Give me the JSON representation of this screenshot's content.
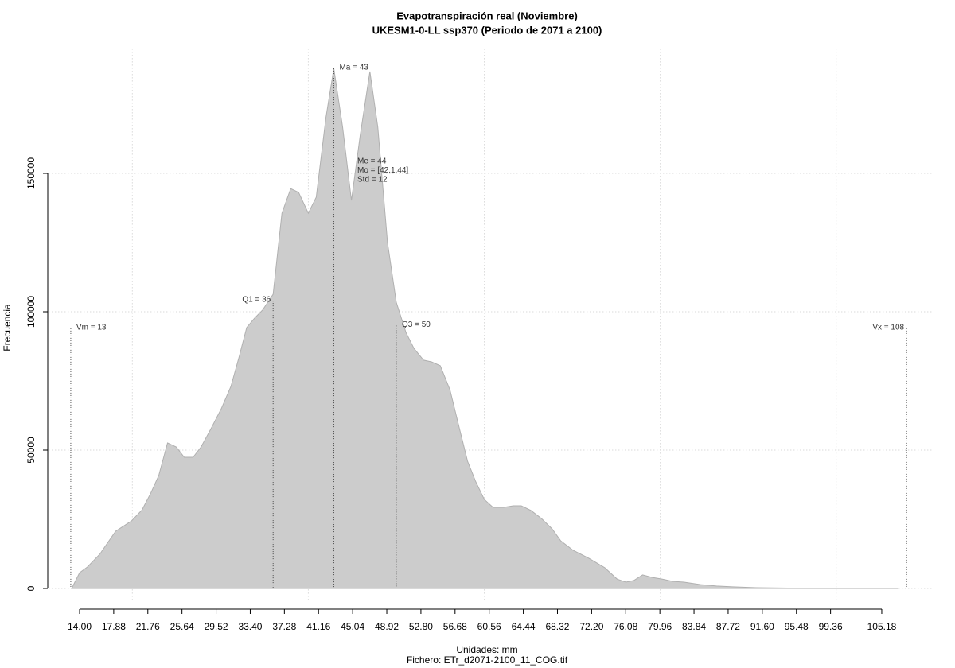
{
  "chart_data": {
    "type": "area",
    "title": "Evapotranspiración real (Noviembre)",
    "subtitle": "UKESM1-0-LL ssp370 (Periodo de 2071 a 2100)",
    "xlabel": "Unidades: mm",
    "caption": "Fichero: ETr_d2071-2100_11_COG.tif",
    "ylabel": "Frecuencia",
    "color": "#cccccc",
    "x": [
      13.1,
      14,
      14.9,
      16.3,
      18.1,
      19.9,
      21.1,
      22.1,
      23,
      24,
      25,
      25.9,
      26.9,
      27.8,
      28.9,
      30.1,
      31.2,
      32.1,
      33,
      33.9,
      34.8,
      36,
      37,
      38,
      38.9,
      40,
      40.9,
      42,
      42.9,
      43.9,
      44.9,
      45.9,
      47,
      47.9,
      49,
      50,
      51.1,
      52,
      53.1,
      54,
      55,
      56.1,
      57.2,
      58.1,
      59,
      60,
      61,
      62.2,
      63.3,
      64.2,
      65.3,
      66.5,
      67.7,
      68.7,
      70.1,
      71.9,
      73.7,
      75.1,
      76.1,
      77,
      78,
      79.1,
      80.2,
      81.4,
      82.7,
      84.6,
      86.4,
      88.2,
      90.9,
      94.5,
      99.9,
      107
    ],
    "values": [
      0,
      5700,
      7800,
      12400,
      20700,
      24400,
      28400,
      34500,
      40800,
      52600,
      51100,
      47400,
      47400,
      51100,
      57500,
      64900,
      73000,
      83300,
      94300,
      97700,
      100600,
      106300,
      135600,
      144500,
      143100,
      135600,
      141400,
      170100,
      187900,
      166700,
      140200,
      163800,
      186800,
      166700,
      125000,
      103400,
      92500,
      86800,
      82500,
      81900,
      80500,
      71800,
      57500,
      46000,
      38800,
      32200,
      29300,
      29300,
      29900,
      29900,
      28200,
      25300,
      21600,
      17200,
      13800,
      10900,
      7500,
      3400,
      2300,
      2900,
      4900,
      4000,
      3400,
      2600,
      2300,
      1400,
      900,
      600,
      300,
      150,
      50,
      0
    ],
    "xlim": [
      10.5,
      111
    ],
    "ylim": [
      -5000,
      195000
    ],
    "yticks": [
      0,
      50000,
      100000,
      150000
    ],
    "xticks": [
      {
        "value": 14,
        "label": "14.00"
      },
      {
        "value": 17.88,
        "label": "17.88"
      },
      {
        "value": 21.76,
        "label": "21.76"
      },
      {
        "value": 25.64,
        "label": "25.64"
      },
      {
        "value": 29.52,
        "label": "29.52"
      },
      {
        "value": 33.4,
        "label": "33.40"
      },
      {
        "value": 37.28,
        "label": "37.28"
      },
      {
        "value": 41.16,
        "label": "41.16"
      },
      {
        "value": 45.04,
        "label": "45.04"
      },
      {
        "value": 48.92,
        "label": "48.92"
      },
      {
        "value": 52.8,
        "label": "52.80"
      },
      {
        "value": 56.68,
        "label": "56.68"
      },
      {
        "value": 60.56,
        "label": "60.56"
      },
      {
        "value": 64.44,
        "label": "64.44"
      },
      {
        "value": 68.32,
        "label": "68.32"
      },
      {
        "value": 72.2,
        "label": "72.20"
      },
      {
        "value": 76.08,
        "label": "76.08"
      },
      {
        "value": 79.96,
        "label": "79.96"
      },
      {
        "value": 83.84,
        "label": "83.84"
      },
      {
        "value": 87.72,
        "label": "87.72"
      },
      {
        "value": 91.6,
        "label": "91.60"
      },
      {
        "value": 95.48,
        "label": "95.48"
      },
      {
        "value": 99.36,
        "label": "99.36"
      },
      {
        "value": 105.18,
        "label": "105.18"
      }
    ],
    "xgrid": [
      20,
      40,
      60,
      80,
      100
    ],
    "grid": true,
    "markers": [
      {
        "label": "Vm = 13",
        "x": 13,
        "y": 94000
      },
      {
        "label": "Q1 = 36",
        "x": 36,
        "y": 104000
      },
      {
        "label": "Ma = 43",
        "x": 42.9,
        "y": 187900
      },
      {
        "label": "Q3 = 50",
        "x": 50,
        "y": 95000
      },
      {
        "label": "Vx = 108",
        "x": 108,
        "y": 94000
      }
    ],
    "stats": [
      "Me = 44",
      "Mo = [42.1,44]",
      "Std = 12"
    ]
  }
}
